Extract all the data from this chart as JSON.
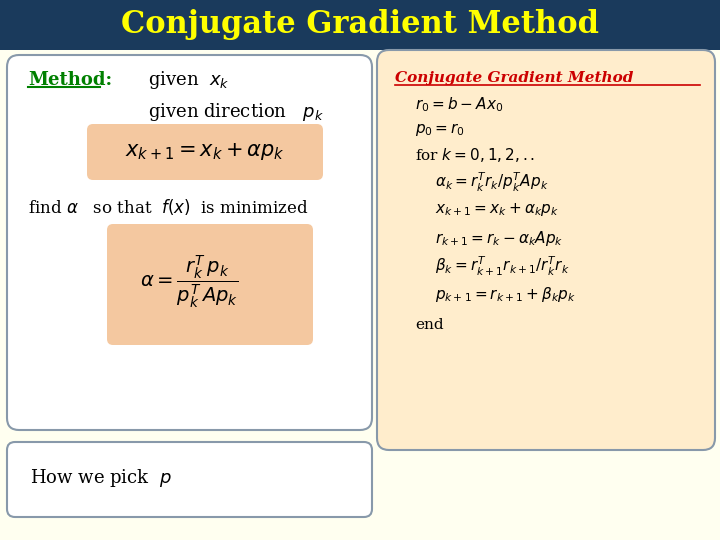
{
  "title": "Conjugate Gradient Method",
  "title_color": "#FFFF00",
  "title_bg_color": "#1a3a5c",
  "background_color": "#FFFFF0",
  "method_label": "Method:",
  "method_label_color": "#008000",
  "left_box_bg": "#FFFFFF",
  "left_box_border": "#8899aa",
  "right_box_bg": "#FFEDCC",
  "right_box_border": "#8899aa",
  "bottom_box_bg": "#FFFFFF",
  "bottom_box_border": "#8899aa",
  "highlight_bg": "#F4C8A0",
  "right_title": "Conjugate Gradient Method",
  "right_title_color": "#CC0000"
}
